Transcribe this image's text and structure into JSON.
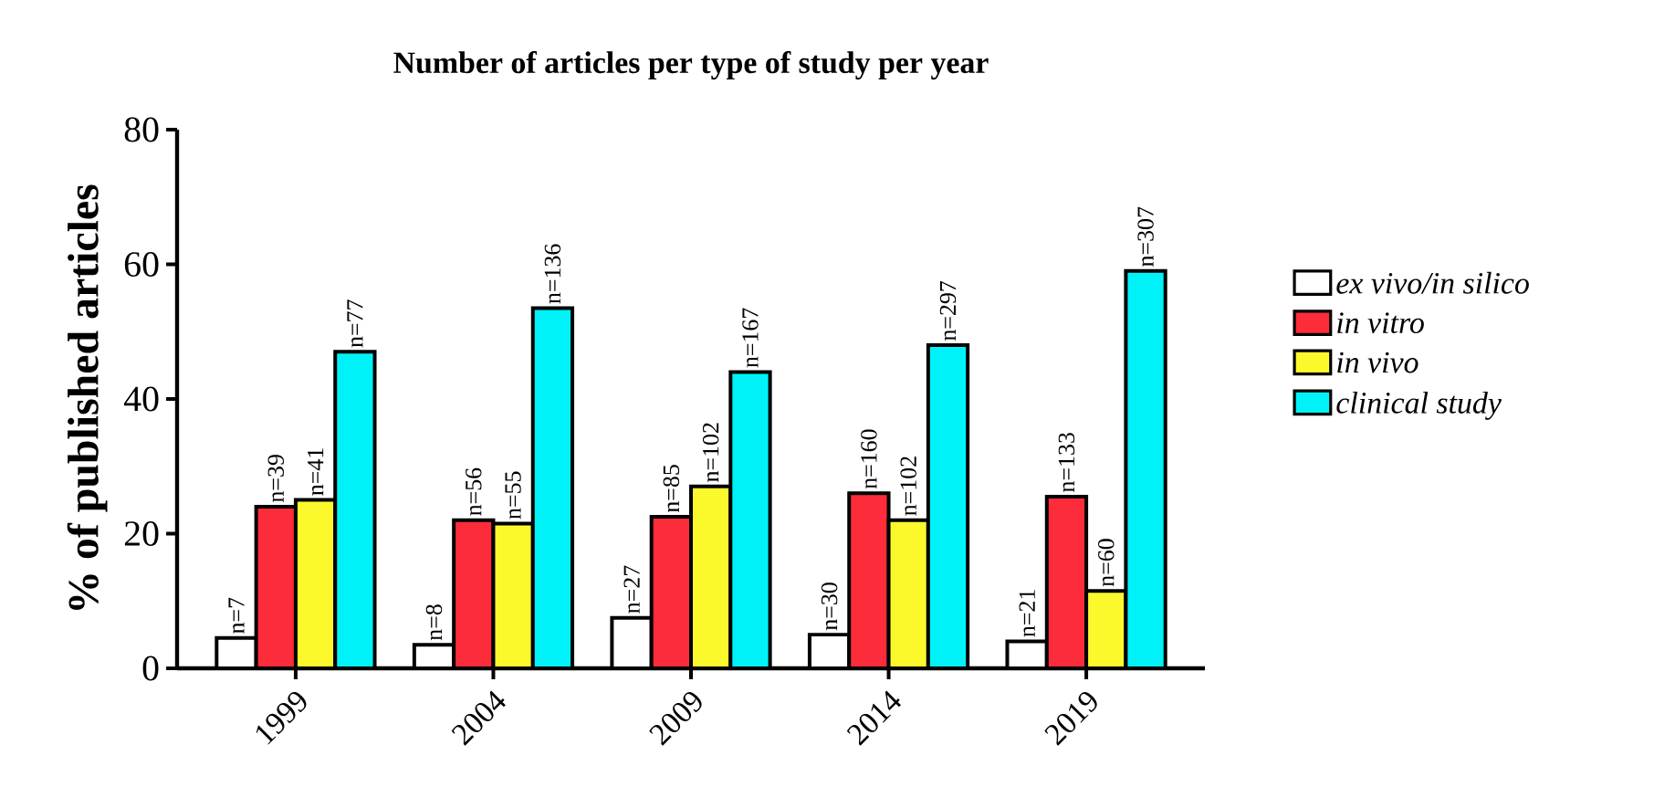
{
  "chart_data": {
    "type": "bar",
    "title": "Number of articles per type of study per year",
    "ylabel": "% of published articles",
    "categories": [
      "1999",
      "2004",
      "2009",
      "2014",
      "2019"
    ],
    "series": [
      {
        "name": "*ex vivo/in silico*",
        "color": "#ffffff",
        "values": [
          4.5,
          3.5,
          7.5,
          5,
          4
        ]
      },
      {
        "name": "*in vitro*",
        "color": "#fc2c3a",
        "values": [
          24,
          22,
          22.5,
          26,
          25.5
        ]
      },
      {
        "name": "*in vivo*",
        "color": "#fbf92c",
        "values": [
          25,
          21.5,
          27,
          22,
          11.5
        ]
      },
      {
        "name": "*clinical study*",
        "color": "#00f2f9",
        "values": [
          47,
          53.5,
          44,
          48,
          59
        ]
      }
    ],
    "annotations": [
      "n=7",
      "n=39",
      "n=41",
      "n=77",
      "n=8",
      "n=56",
      "n=55",
      "n=136",
      "n=27",
      "n=85",
      "n=102",
      "n=167",
      "n=30",
      "n=160",
      "n=102",
      "n=297",
      "n=21",
      "n=133",
      "n=60",
      "n=307"
    ],
    "ylim": [
      0,
      80
    ],
    "yticks": [
      0,
      20,
      40,
      60,
      80
    ],
    "grid": false,
    "legend": "right"
  }
}
